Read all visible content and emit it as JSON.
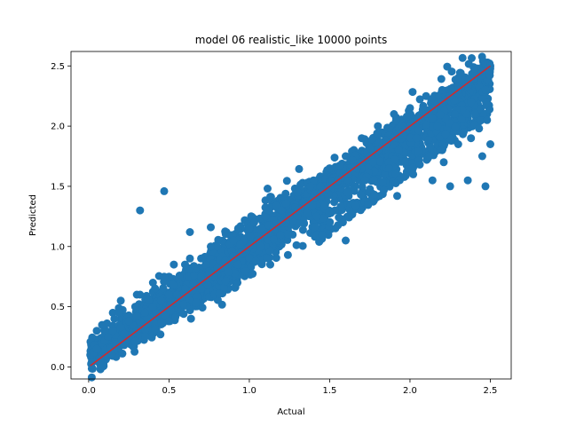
{
  "chart_data": {
    "type": "scatter",
    "title": "model 06 realistic_like 10000 points",
    "xlabel": "Actual",
    "ylabel": "Predicted",
    "xlim": [
      -0.11,
      2.63
    ],
    "ylim": [
      -0.1,
      2.62
    ],
    "xticks": [
      0.0,
      0.5,
      1.0,
      1.5,
      2.0,
      2.5
    ],
    "xtick_labels": [
      "0.0",
      "0.5",
      "1.0",
      "1.5",
      "2.0",
      "2.5"
    ],
    "yticks": [
      0.0,
      0.5,
      1.0,
      1.5,
      2.0,
      2.5
    ],
    "ytick_labels": [
      "0.0",
      "0.5",
      "1.0",
      "1.5",
      "2.0",
      "2.5"
    ],
    "grid": false,
    "colors": {
      "points": "#1f77b4",
      "fit_line": "#d62728"
    },
    "fit_line": {
      "x": [
        0.01,
        2.5
      ],
      "y": [
        0.01,
        2.5
      ]
    },
    "point_count": 10000,
    "series": [
      {
        "x": [
          0.01,
          0.03,
          0.05,
          0.08,
          0.1,
          0.12,
          0.15,
          0.2,
          0.25,
          0.3,
          0.35,
          0.4,
          0.45,
          0.5,
          0.55,
          0.6,
          0.65,
          0.7,
          0.75,
          0.8,
          0.85,
          0.9,
          0.95,
          1.0,
          1.05,
          1.1,
          1.15,
          1.2,
          1.25,
          1.3,
          1.35,
          1.4,
          1.45,
          1.5,
          1.55,
          1.6,
          1.65,
          1.7,
          1.75,
          1.8,
          1.85,
          1.9,
          1.95,
          2.0,
          2.05,
          2.1,
          2.15,
          2.2,
          2.25,
          2.3,
          2.35,
          2.4,
          2.45,
          2.5,
          0.05,
          0.1,
          0.15,
          0.2,
          0.3,
          0.4,
          0.5,
          0.6,
          0.7,
          0.8,
          0.9,
          1.0,
          1.1,
          1.2,
          1.3,
          1.4,
          1.5,
          1.6,
          1.7,
          1.8,
          1.9,
          2.0,
          2.1,
          2.2,
          2.3,
          2.4,
          0.16,
          0.19,
          0.29,
          0.32,
          0.47,
          0.53,
          0.63,
          0.76,
          0.93,
          1.03,
          1.12,
          1.38,
          1.61,
          1.77,
          1.93,
          2.04,
          2.17,
          2.28,
          2.38,
          2.47,
          0.32,
          0.47,
          0.63,
          0.76,
          0.5,
          0.59,
          0.7,
          0.78,
          0.93,
          1.07,
          1.24,
          1.42,
          1.61,
          1.72,
          1.87,
          1.97,
          2.12,
          2.2,
          2.3,
          2.38,
          2.43,
          2.48,
          1.13,
          1.24,
          1.5,
          1.6,
          1.92,
          2.02,
          2.14,
          2.21,
          2.25,
          2.36,
          2.45,
          2.5,
          2.48,
          2.47
        ],
        "y": [
          0.1,
          0.12,
          0.15,
          0.2,
          0.22,
          0.25,
          0.3,
          0.33,
          0.38,
          0.42,
          0.45,
          0.5,
          0.55,
          0.58,
          0.6,
          0.65,
          0.7,
          0.75,
          0.78,
          0.82,
          0.88,
          0.92,
          0.95,
          1.0,
          1.05,
          1.1,
          1.15,
          1.2,
          1.25,
          1.3,
          1.35,
          1.4,
          1.45,
          1.5,
          1.55,
          1.6,
          1.65,
          1.7,
          1.75,
          1.8,
          1.85,
          1.9,
          1.95,
          2.0,
          2.05,
          2.1,
          2.15,
          2.2,
          2.25,
          2.3,
          2.35,
          2.4,
          2.45,
          2.5,
          0.3,
          0.35,
          0.45,
          0.55,
          0.6,
          0.7,
          0.75,
          0.85,
          0.9,
          1.0,
          1.05,
          1.15,
          1.25,
          1.3,
          1.45,
          1.55,
          1.65,
          1.75,
          1.9,
          2.0,
          2.1,
          2.15,
          2.25,
          2.3,
          2.4,
          2.48,
          0.4,
          0.45,
          0.5,
          0.6,
          0.75,
          0.85,
          0.9,
          1.0,
          1.15,
          1.2,
          1.3,
          1.5,
          1.6,
          1.7,
          1.8,
          1.9,
          2.0,
          2.1,
          2.2,
          2.3,
          1.3,
          1.46,
          1.12,
          1.16,
          0.6,
          0.52,
          0.65,
          0.75,
          0.85,
          1.0,
          1.1,
          1.25,
          1.45,
          1.55,
          1.65,
          1.7,
          1.75,
          1.8,
          1.85,
          1.9,
          1.98,
          2.05,
          0.85,
          0.93,
          1.2,
          1.05,
          1.42,
          1.6,
          1.55,
          1.7,
          1.5,
          1.55,
          1.75,
          1.85,
          2.2,
          1.5
        ],
        "note": ""
      }
    ]
  }
}
